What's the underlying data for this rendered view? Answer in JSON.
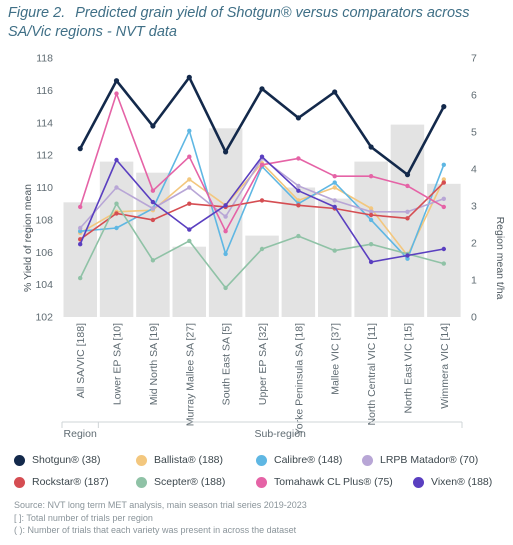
{
  "figure": {
    "number": "Figure 2.",
    "title": "Predicted grain yield of Shotgun® versus comparators across SA/Vic regions - NVT data"
  },
  "chart_data": {
    "type": "bar+line",
    "categories": [
      "All SA/VIC [188]",
      "Lower EP SA [10]",
      "Mid North SA [19]",
      "Murray Mallee SA [27]",
      "South East SA [5]",
      "Upper EP SA [32]",
      "Yorke Peninsula SA [18]",
      "Mallee VIC [37]",
      "North Central VIC [11]",
      "North East VIC [15]",
      "Wimmera VIC [14]"
    ],
    "group_labels": [
      {
        "label": "Region",
        "from": 0,
        "to": 0
      },
      {
        "label": "Sub-region",
        "from": 1,
        "to": 10
      }
    ],
    "ylabel": "% Yield of region mean",
    "y2label": "Region mean t/ha",
    "ylim": [
      102,
      118
    ],
    "yticks": [
      102,
      104,
      106,
      108,
      110,
      112,
      114,
      116,
      118
    ],
    "y2lim": [
      0,
      7
    ],
    "y2ticks": [
      0,
      1,
      2,
      3,
      4,
      5,
      6,
      7
    ],
    "bars": {
      "name": "Region mean t/ha",
      "color": "#e3e3e3",
      "values": [
        3.1,
        4.2,
        3.9,
        1.9,
        5.1,
        2.2,
        3.5,
        3.2,
        4.2,
        5.2,
        3.6
      ]
    },
    "series": [
      {
        "name": "Shotgun® (38)",
        "color": "#13294b",
        "width": 2.6,
        "values": [
          112.4,
          116.6,
          113.8,
          116.8,
          112.2,
          116.1,
          114.3,
          115.9,
          112.5,
          110.8,
          115.0
        ]
      },
      {
        "name": "Ballista® (188)",
        "color": "#f3c77e",
        "width": 1.6,
        "values": [
          107.2,
          108.5,
          108.6,
          110.5,
          108.9,
          111.5,
          109.2,
          110.0,
          108.7,
          105.8,
          110.5
        ]
      },
      {
        "name": "Calibre® (148)",
        "color": "#5fb7e3",
        "width": 1.6,
        "values": [
          107.3,
          107.5,
          108.7,
          113.5,
          105.9,
          111.3,
          109.0,
          110.3,
          108.0,
          105.6,
          111.4
        ]
      },
      {
        "name": "LRPB Matador® (70)",
        "color": "#b8a6d6",
        "width": 1.6,
        "values": [
          107.5,
          110.0,
          108.7,
          110.0,
          108.2,
          111.8,
          110.1,
          109.2,
          108.5,
          108.5,
          109.3
        ]
      },
      {
        "name": "Rockstar® (187)",
        "color": "#d54d52",
        "width": 1.6,
        "values": [
          106.8,
          108.4,
          108.0,
          109.0,
          108.8,
          109.2,
          108.9,
          108.7,
          108.3,
          108.1,
          110.3
        ]
      },
      {
        "name": "Scepter® (188)",
        "color": "#8fc2a6",
        "width": 1.6,
        "values": [
          104.4,
          109.0,
          105.5,
          106.7,
          103.8,
          106.2,
          107.0,
          106.1,
          106.5,
          105.9,
          105.3
        ]
      },
      {
        "name": "Tomahawk CL Plus® (75)",
        "color": "#e563a6",
        "width": 1.6,
        "values": [
          108.8,
          115.8,
          109.8,
          111.9,
          107.3,
          111.4,
          111.8,
          110.7,
          110.7,
          110.1,
          108.8
        ]
      },
      {
        "name": "Vixen® (188)",
        "color": "#5a3fc0",
        "width": 1.6,
        "values": [
          106.5,
          111.7,
          109.1,
          107.4,
          108.9,
          111.9,
          109.8,
          108.8,
          105.4,
          105.8,
          106.2
        ]
      }
    ],
    "legend_position": "bottom",
    "grid": false
  },
  "notes": [
    "Source: NVT long term MET analysis, main season trial series 2019-2023",
    "[ ]: Total number of trials per region",
    "( ): Number of trials that each variety was present in across the dataset"
  ]
}
